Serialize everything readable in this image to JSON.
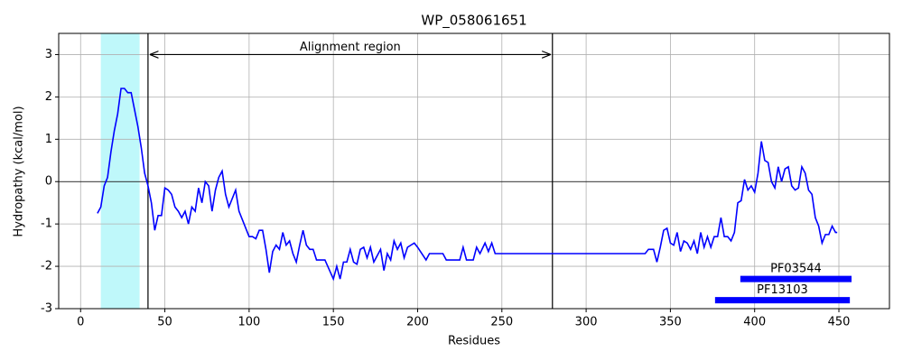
{
  "chart_data": {
    "type": "line",
    "title": "WP_058061651",
    "xlabel": "Residues",
    "ylabel": "Hydropathy (kcal/mol)",
    "color": "#0000ff",
    "x": [
      10,
      12,
      14,
      16,
      18,
      20,
      22,
      24,
      26,
      28,
      30,
      32,
      34,
      36,
      38,
      40,
      42,
      44,
      46,
      48,
      50,
      52,
      54,
      56,
      58,
      60,
      62,
      64,
      66,
      68,
      70,
      72,
      74,
      76,
      78,
      80,
      82,
      84,
      86,
      88,
      90,
      92,
      94,
      96,
      98,
      100,
      102,
      104,
      106,
      108,
      110,
      112,
      114,
      116,
      118,
      120,
      122,
      124,
      126,
      128,
      130,
      132,
      134,
      136,
      138,
      140,
      145,
      150,
      152,
      154,
      156,
      158,
      160,
      162,
      164,
      166,
      168,
      170,
      172,
      174,
      176,
      178,
      180,
      182,
      184,
      186,
      188,
      190,
      192,
      194,
      196,
      198,
      200,
      205,
      207,
      215,
      217,
      225,
      227,
      229,
      233,
      235,
      237,
      240,
      242,
      244,
      246,
      330,
      335,
      337,
      340,
      342,
      344,
      346,
      348,
      350,
      352,
      354,
      356,
      358,
      360,
      362,
      364,
      366,
      368,
      370,
      372,
      374,
      376,
      378,
      380,
      382,
      384,
      386,
      388,
      390,
      392,
      394,
      396,
      398,
      400,
      402,
      404,
      406,
      408,
      410,
      412,
      414,
      416,
      418,
      420,
      422,
      424,
      426,
      428,
      430,
      432,
      434,
      436,
      438,
      440,
      442,
      444,
      446,
      448,
      449
    ],
    "values": [
      -0.75,
      -0.6,
      -0.1,
      0.1,
      0.7,
      1.2,
      1.6,
      2.2,
      2.2,
      2.1,
      2.1,
      1.7,
      1.3,
      0.8,
      0.2,
      -0.1,
      -0.5,
      -1.15,
      -0.8,
      -0.8,
      -0.15,
      -0.2,
      -0.3,
      -0.6,
      -0.7,
      -0.85,
      -0.7,
      -1.0,
      -0.6,
      -0.7,
      -0.15,
      -0.5,
      0.0,
      -0.1,
      -0.7,
      -0.2,
      0.1,
      0.25,
      -0.3,
      -0.6,
      -0.4,
      -0.2,
      -0.7,
      -0.9,
      -1.1,
      -1.3,
      -1.3,
      -1.35,
      -1.15,
      -1.15,
      -1.6,
      -2.15,
      -1.65,
      -1.5,
      -1.6,
      -1.2,
      -1.5,
      -1.4,
      -1.7,
      -1.9,
      -1.5,
      -1.15,
      -1.5,
      -1.6,
      -1.6,
      -1.85,
      -1.85,
      -2.3,
      -2.0,
      -2.3,
      -1.9,
      -1.9,
      -1.6,
      -1.9,
      -1.95,
      -1.6,
      -1.55,
      -1.8,
      -1.55,
      -1.9,
      -1.75,
      -1.6,
      -2.1,
      -1.7,
      -1.85,
      -1.4,
      -1.6,
      -1.45,
      -1.8,
      -1.55,
      -1.5,
      -1.45,
      -1.55,
      -1.85,
      -1.7,
      -1.7,
      -1.85,
      -1.85,
      -1.55,
      -1.85,
      -1.85,
      -1.55,
      -1.7,
      -1.45,
      -1.65,
      -1.45,
      -1.7,
      -1.7,
      -1.7,
      -1.6,
      -1.6,
      -1.9,
      -1.55,
      -1.15,
      -1.1,
      -1.45,
      -1.5,
      -1.2,
      -1.65,
      -1.4,
      -1.45,
      -1.6,
      -1.4,
      -1.7,
      -1.2,
      -1.55,
      -1.3,
      -1.55,
      -1.3,
      -1.3,
      -0.85,
      -1.3,
      -1.3,
      -1.4,
      -1.2,
      -0.5,
      -0.45,
      0.05,
      -0.2,
      -0.1,
      -0.25,
      0.2,
      0.95,
      0.5,
      0.45,
      0.0,
      -0.15,
      0.35,
      0.0,
      0.3,
      0.35,
      -0.1,
      -0.2,
      -0.15,
      0.35,
      0.2,
      -0.2,
      -0.3,
      -0.85,
      -1.05,
      -1.45,
      -1.25,
      -1.25,
      -1.05,
      -1.2,
      -1.2
    ],
    "xlim": [
      -13,
      480
    ],
    "ylim": [
      -3,
      3.5
    ],
    "xticks": [
      0,
      50,
      100,
      150,
      200,
      250,
      300,
      350,
      400,
      450
    ],
    "yticks": [
      -3,
      -2,
      -1,
      0,
      1,
      2,
      3
    ],
    "grid": true,
    "hline": 0,
    "highlight": {
      "start": 12,
      "end": 35,
      "color": "#bff8fa"
    },
    "region": {
      "label": "Alignment region",
      "start": 40,
      "end": 280,
      "y": 3
    },
    "domains": [
      {
        "label": "PF03544",
        "start": 391.5,
        "end": 457.5,
        "y": -2.3,
        "color": "#0000ff"
      },
      {
        "label": "PF13103",
        "start": 376.5,
        "end": 456.5,
        "y": -2.8,
        "color": "#0000ff"
      }
    ]
  }
}
